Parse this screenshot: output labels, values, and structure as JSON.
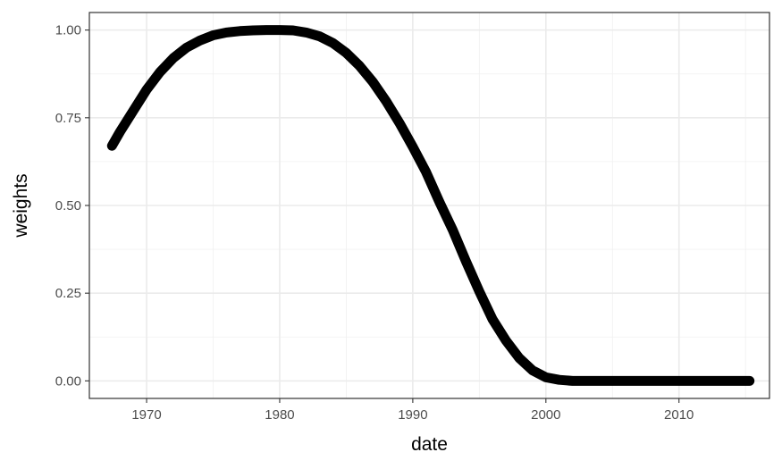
{
  "chart_data": {
    "type": "line",
    "title": "",
    "xlabel": "date",
    "ylabel": "weights",
    "xlim": [
      1965.7,
      2016.8
    ],
    "ylim": [
      -0.05,
      1.05
    ],
    "x_ticks": [
      1970,
      1980,
      1990,
      2000,
      2010
    ],
    "x_tick_labels": [
      "1970",
      "1980",
      "1990",
      "2000",
      "2010"
    ],
    "y_ticks": [
      0.0,
      0.25,
      0.5,
      0.75,
      1.0
    ],
    "y_tick_labels": [
      "0.00",
      "0.25",
      "0.50",
      "0.75",
      "1.00"
    ],
    "grid": true,
    "theme": "bw",
    "series": [
      {
        "color": "#000000",
        "x": [
          1967.4,
          1968,
          1969,
          1970,
          1971,
          1972,
          1973,
          1974,
          1975,
          1976,
          1977,
          1978,
          1979,
          1980,
          1981,
          1982,
          1983,
          1984,
          1985,
          1986,
          1987,
          1988,
          1989,
          1990,
          1991,
          1992,
          1993,
          1994,
          1995,
          1996,
          1997,
          1998,
          1999,
          2000,
          2001,
          2002,
          2003,
          2005,
          2008,
          2012,
          2015.3
        ],
        "y": [
          0.67,
          0.71,
          0.77,
          0.83,
          0.88,
          0.92,
          0.95,
          0.97,
          0.985,
          0.993,
          0.997,
          0.999,
          1.0,
          1.0,
          0.999,
          0.993,
          0.982,
          0.963,
          0.935,
          0.898,
          0.852,
          0.797,
          0.735,
          0.667,
          0.595,
          0.51,
          0.43,
          0.34,
          0.255,
          0.175,
          0.115,
          0.065,
          0.03,
          0.01,
          0.003,
          0.0,
          0.0,
          0.0,
          0.0,
          0.0,
          0.0
        ]
      }
    ]
  }
}
